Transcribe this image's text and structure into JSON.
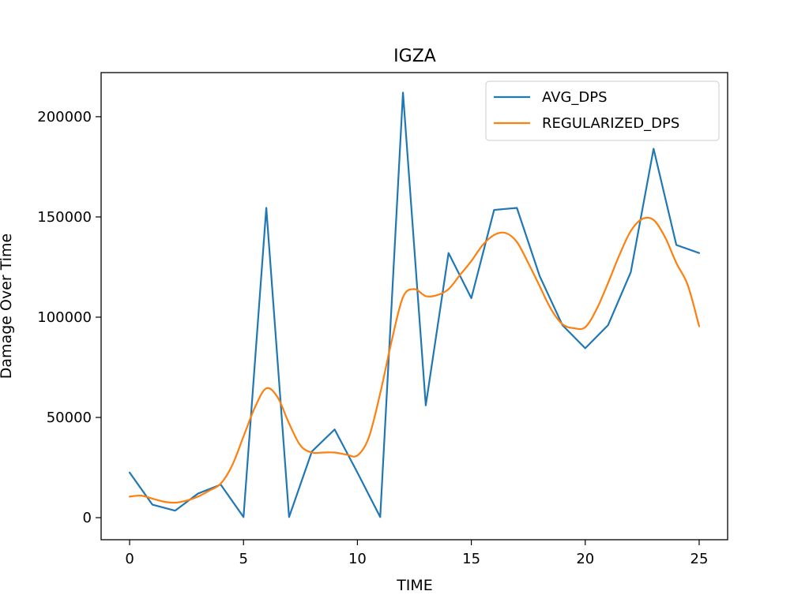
{
  "chart_data": {
    "type": "line",
    "title": "IGZA",
    "xlabel": "TIME",
    "ylabel": "Damage Over Time",
    "xlim": [
      -1.25,
      26.25
    ],
    "ylim": [
      -11000,
      222000
    ],
    "xticks": [
      0,
      5,
      10,
      15,
      20,
      25
    ],
    "yticks": [
      0,
      50000,
      100000,
      150000,
      200000
    ],
    "xtick_labels": [
      "0",
      "5",
      "10",
      "15",
      "20",
      "25"
    ],
    "ytick_labels": [
      "0",
      "50000",
      "100000",
      "150000",
      "200000"
    ],
    "grid": false,
    "legend_position": "top-right",
    "series": [
      {
        "name": "AVG_DPS",
        "color": "#1f77b4",
        "smooth": false,
        "x": [
          0,
          1,
          2,
          3,
          4,
          5,
          6,
          7,
          8,
          9,
          10,
          11,
          12,
          13,
          14,
          15,
          16,
          17,
          18,
          19,
          20,
          21,
          22,
          23,
          24,
          25
        ],
        "values": [
          22500,
          6500,
          3500,
          12000,
          16500,
          300,
          154500,
          300,
          33000,
          44000,
          22500,
          300,
          212000,
          56000,
          132000,
          109500,
          153500,
          154500,
          120500,
          96000,
          84500,
          96000,
          122500,
          184000,
          136000,
          132000
        ]
      },
      {
        "name": "REGULARIZED_DPS",
        "color": "#ff7f0e",
        "smooth": true,
        "x": [
          0,
          0.5,
          1,
          1.5,
          2,
          2.5,
          3,
          3.5,
          4,
          4.5,
          5,
          5.5,
          6,
          6.5,
          7,
          7.5,
          8,
          8.5,
          9,
          9.5,
          10,
          10.5,
          11,
          11.5,
          12,
          12.5,
          13,
          13.5,
          14,
          14.5,
          15,
          15.5,
          16,
          16.5,
          17,
          17.5,
          18,
          18.5,
          19,
          19.5,
          20,
          20.5,
          21,
          21.5,
          22,
          22.5,
          23,
          23.5,
          24,
          24.5,
          25
        ],
        "values": [
          10500,
          11000,
          9500,
          8000,
          7500,
          8500,
          10500,
          13500,
          17000,
          26000,
          40500,
          55000,
          64500,
          60000,
          47000,
          36000,
          32500,
          32500,
          32500,
          31500,
          31000,
          40000,
          62000,
          88000,
          110000,
          114000,
          110500,
          111000,
          114000,
          121000,
          128000,
          136000,
          141000,
          142000,
          137500,
          127000,
          115500,
          104000,
          96500,
          94500,
          95000,
          104000,
          117000,
          131000,
          143000,
          149000,
          148500,
          140000,
          127000,
          116000,
          95500
        ]
      }
    ]
  }
}
